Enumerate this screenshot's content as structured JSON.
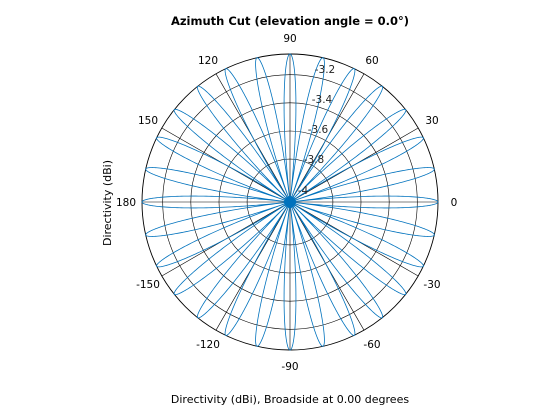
{
  "chart_data": {
    "type": "polar",
    "title": "Azimuth Cut (elevation angle = 0.0°)",
    "xlabel": "Directivity (dBi), Broadside at 0.00 degrees",
    "ylabel": "Directivity (dBi)",
    "angle_ticks": [
      "0",
      "30",
      "60",
      "90",
      "120",
      "150",
      "180",
      "-150",
      "-120",
      "-90",
      "-60",
      "-30"
    ],
    "radial_ticks": [
      "-3.2",
      "-3.4",
      "-3.6",
      "-3.8",
      "-4"
    ],
    "series": [
      {
        "color": "#0072BD",
        "pattern": {
          "lobes": 28,
          "main_lobe_angles_deg": [
            0,
            180
          ],
          "peak_directivity_dbi": -3.05,
          "min_directivity_dbi": -4.1
        }
      }
    ],
    "line_color": "#0072BD",
    "grid": true
  }
}
